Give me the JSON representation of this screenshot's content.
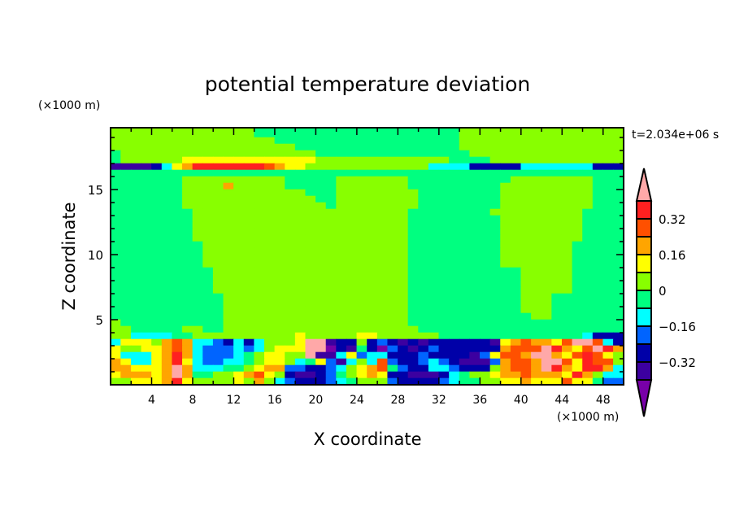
{
  "chart_data": {
    "type": "heatmap",
    "title": "potential temperature deviation",
    "xlabel": "X coordinate",
    "ylabel": "Z coordinate",
    "x_unit_label": "(×1000 m)",
    "y_unit_label": "(×1000 m)",
    "time_label": "t=2.034e+06 s",
    "xlim": [
      0,
      50
    ],
    "ylim": [
      0,
      19.75
    ],
    "x_ticks": [
      4,
      8,
      12,
      16,
      20,
      24,
      28,
      32,
      36,
      40,
      44,
      48
    ],
    "x_tick_labels": [
      "4",
      "8",
      "12",
      "16",
      "20",
      "24",
      "28",
      "32",
      "36",
      "40",
      "44",
      "48"
    ],
    "y_ticks": [
      5,
      10,
      15
    ],
    "y_tick_labels": [
      "5",
      "10",
      "15"
    ],
    "grid_cell_size": [
      1,
      0.5
    ],
    "grid_note": "rows from top (z 19.5-20) to bottom (z 0-0.5); each char = level index into colorbar.colors",
    "grid": [
      "66666666666666555555555555555555556666666666666666",
      "66666666666666555555555555555555556666666666666666",
      "66666666666666665555555555555555556666666666666666",
      "66666666666666666655555555555555556666666666666666",
      "56666666666666666666555555555555555666666666666666",
      "56666667777777777777666666666666655556666666666666",
      "11112478aaaaaaa98776666666666664444222224444444222",
      "55555555555555555555555555555555555555555555555555",
      "55555556666666666555556666666555555555566666666555",
      "55555556666866666555556666666555555555666666666555",
      "55555556666666666665556666666655555555666666666555",
      "55555556666666666666556666666655555555666666666555",
      "55555556666666666666656666666655555555666666666555",
      "55555555666666666666666666666555555556666666665555",
      "55555555666666666666666666666555555555666666665555",
      "55555555666666666666666666666555555555666666665555",
      "55555555666666666666666666666555555555666666665555",
      "55555555666666666666666666666555555555666666665555",
      "55555555566666666666666666666555555555666666655555",
      "55555555566666666666666666666555555555666666655555",
      "55555555566666666666666666666555555555666666655555",
      "55555555566666666666666666666555555555666666655555",
      "55555555556666666666666666666555555555556666655555",
      "55555555556666666666666666666555555555556666655555",
      "55555555556666666666666666666555555555556666655555",
      "55555555556666666666666666666555555555556666655555",
      "55555555555666666666666666666555555555556665555555",
      "55555555555666666666666666666555555555556665555555",
      "55555555555666666666666666666555555555556665555555",
      "55555555555666666666666666666555555555555665555555",
      "65555555555666666666666666666555555555555555555555",
      "66555556655666666666666666666655555555555555555555",
      "66444455666666666676666677666666555555555555554222",
      "47776898443242466 7bb122623212122222217898879bb9424",
      "7667789843334346777bb021520321232222228999ba879ba874",
      "744478a843334567766b1147344222322221379 8bb879a9765",
      "874478a743344567764573146493223432111389 8bb97a99654",
      "887778b844455678833223467895322443222689 8ba87aa8444",
      "788878b855667897621123567872211124566788988 7a86443",
      "667778a766667686432223456663222234556677877797 5332"
    ],
    "colorbar": {
      "labels": [
        "0.32",
        "0.16",
        "0",
        "−0.16",
        "−0.32"
      ],
      "label_values": [
        0.32,
        0.16,
        0,
        -0.16,
        -0.32
      ],
      "levels": [
        -0.4,
        -0.32,
        -0.24,
        -0.16,
        -0.08,
        0,
        0.08,
        0.16,
        0.24,
        0.32,
        0.4
      ],
      "colors": [
        "#7800a8",
        "#3c00a0",
        "#0000a8",
        "#0064ff",
        "#00ffff",
        "#00ff80",
        "#88ff00",
        "#ffff00",
        "#ffa500",
        "#ff5000",
        "#ff2020",
        "#ffa8a8"
      ]
    }
  }
}
